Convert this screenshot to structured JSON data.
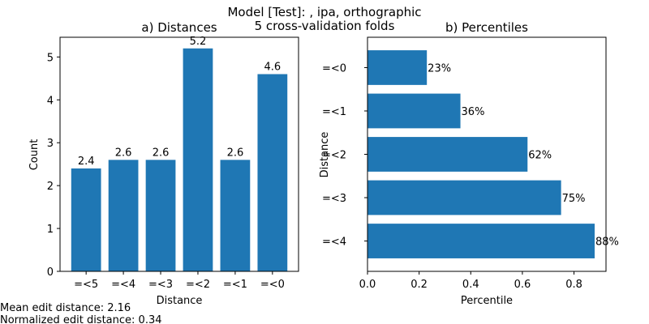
{
  "figure": {
    "suptitle_line1": "Model [Test]:  , ipa, orthographic",
    "suptitle_line2": "5 cross-validation folds",
    "footer_line1": "Mean edit distance: 2.16",
    "footer_line2": "Normalized edit distance: 0.34"
  },
  "colors": {
    "bar": "#1f77b4"
  },
  "chart_data": [
    {
      "type": "bar",
      "title": "a) Distances",
      "xlabel": "Distance",
      "ylabel": "Count",
      "categories": [
        "=<5",
        "=<4",
        "=<3",
        "=<2",
        "=<1",
        "=<0"
      ],
      "values": [
        2.4,
        2.6,
        2.6,
        5.2,
        2.6,
        4.6
      ],
      "data_labels": [
        "2.4",
        "2.6",
        "2.6",
        "5.2",
        "2.6",
        "4.6"
      ],
      "ylim": [
        0,
        5.46
      ],
      "yticks": [
        0,
        1,
        2,
        3,
        4,
        5
      ],
      "ytick_labels": [
        "0",
        "1",
        "2",
        "3",
        "4",
        "5"
      ],
      "grid": false
    },
    {
      "type": "bar",
      "orientation": "horizontal",
      "title": "b) Percentiles",
      "xlabel": "Percentile",
      "ylabel": "Distance",
      "categories": [
        "=<0",
        "=<1",
        "=<2",
        "=<3",
        "=<4"
      ],
      "values": [
        0.23,
        0.36,
        0.62,
        0.75,
        0.88
      ],
      "data_labels": [
        "23%",
        "36%",
        "62%",
        "75%",
        "88%"
      ],
      "xlim": [
        0,
        0.924
      ],
      "xticks": [
        0,
        0.2,
        0.4,
        0.6,
        0.8
      ],
      "xtick_labels": [
        "0.0",
        "0.2",
        "0.4",
        "0.6",
        "0.8"
      ],
      "grid": false
    }
  ]
}
